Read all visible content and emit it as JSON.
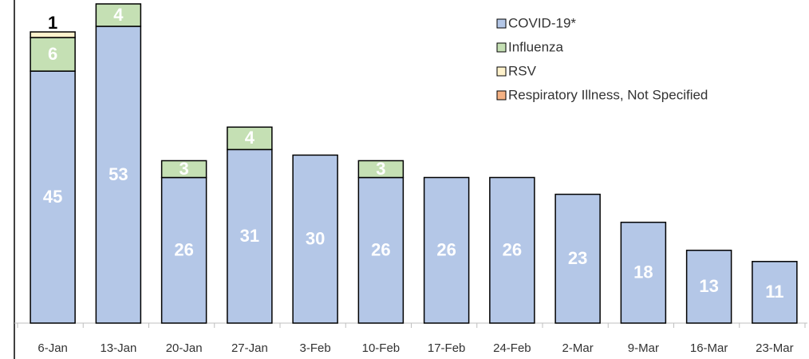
{
  "chart_data": {
    "type": "stacked_bar",
    "categories": [
      "6-Jan",
      "13-Jan",
      "20-Jan",
      "27-Jan",
      "3-Feb",
      "10-Feb",
      "17-Feb",
      "24-Feb",
      "2-Mar",
      "9-Mar",
      "16-Mar",
      "23-Mar"
    ],
    "series": [
      {
        "name": "COVID-19*",
        "color": "#b4c7e7",
        "values": [
          45,
          53,
          26,
          31,
          30,
          26,
          26,
          26,
          23,
          18,
          13,
          11
        ]
      },
      {
        "name": "Influenza",
        "color": "#c5e0b4",
        "values": [
          6,
          4,
          3,
          4,
          0,
          3,
          0,
          0,
          0,
          0,
          0,
          0
        ]
      },
      {
        "name": "RSV",
        "color": "#fff2cc",
        "values": [
          1,
          0,
          0,
          0,
          0,
          0,
          0,
          0,
          0,
          0,
          0,
          0
        ]
      },
      {
        "name": "Respiratory Illness, Not Specified",
        "color": "#f4b183",
        "values": [
          0,
          0,
          0,
          0,
          0,
          0,
          0,
          0,
          0,
          0,
          0,
          0
        ]
      }
    ],
    "ylim": [
      0,
      57.7
    ],
    "legend": "upper right"
  }
}
